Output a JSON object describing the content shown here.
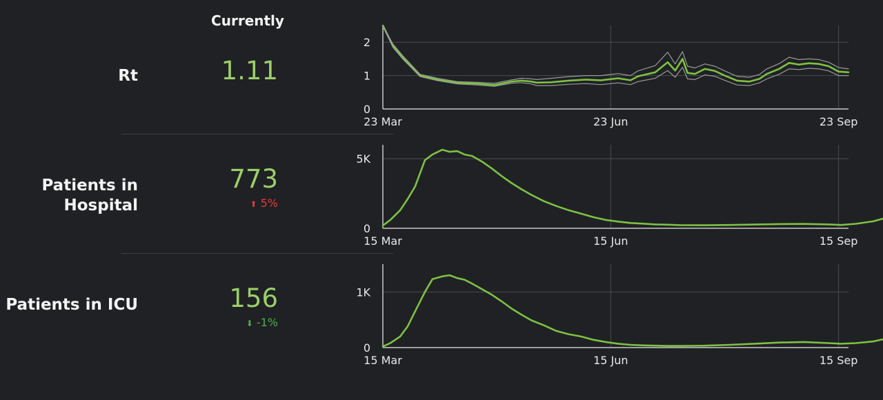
{
  "header": {
    "currently_label": "Currently"
  },
  "rows": [
    {
      "label": "Rt",
      "value": "1.11",
      "change": "",
      "change_direction": ""
    },
    {
      "label": "Patients in Hospital",
      "value": "773",
      "change": "5%",
      "change_direction": "up"
    },
    {
      "label": "Patients in ICU",
      "value": "156",
      "change": "-1%",
      "change_direction": "down"
    }
  ],
  "colors": {
    "line": "#7dc243",
    "band": "#9a9a9a",
    "up": "#e03c3c",
    "down": "#4caf50",
    "value": "#9bcf6a"
  },
  "chart_data": [
    {
      "type": "line",
      "title": "",
      "ylim": [
        0,
        2.5
      ],
      "yticks": [
        0,
        1,
        2
      ],
      "ytick_labels": [
        "0",
        "1",
        "2"
      ],
      "xticks": [
        0,
        92,
        184
      ],
      "xtick_labels": [
        "23 Mar",
        "23 Jun",
        "23 Sep"
      ],
      "grid": true,
      "band": true,
      "series": [
        {
          "x": [
            0,
            4,
            8,
            15,
            22,
            30,
            38,
            45,
            52,
            56,
            60,
            62,
            68,
            75,
            82,
            88,
            95,
            100,
            103,
            110,
            115,
            118,
            121,
            123,
            126,
            130,
            134,
            138,
            143,
            148,
            152,
            155,
            160,
            164,
            168,
            172,
            176,
            180,
            184,
            188
          ],
          "values": [
            2.5,
            1.9,
            1.55,
            1.0,
            0.88,
            0.78,
            0.76,
            0.72,
            0.82,
            0.85,
            0.82,
            0.79,
            0.8,
            0.85,
            0.88,
            0.86,
            0.92,
            0.86,
            0.98,
            1.1,
            1.4,
            1.15,
            1.5,
            1.08,
            1.05,
            1.2,
            1.14,
            1.0,
            0.85,
            0.82,
            0.9,
            1.05,
            1.2,
            1.38,
            1.33,
            1.37,
            1.35,
            1.28,
            1.12,
            1.1
          ]
        },
        {
          "x": [
            0,
            4,
            8,
            15,
            22,
            30,
            38,
            45,
            52,
            56,
            60,
            62,
            68,
            75,
            82,
            88,
            95,
            100,
            103,
            110,
            115,
            118,
            121,
            123,
            126,
            130,
            134,
            138,
            143,
            148,
            152,
            155,
            160,
            164,
            168,
            172,
            176,
            180,
            184,
            188
          ],
          "values": [
            2.5,
            1.95,
            1.6,
            1.04,
            0.92,
            0.82,
            0.8,
            0.77,
            0.87,
            0.92,
            0.9,
            0.88,
            0.92,
            0.97,
            1.0,
            1.0,
            1.06,
            1.0,
            1.14,
            1.3,
            1.7,
            1.35,
            1.72,
            1.28,
            1.23,
            1.35,
            1.28,
            1.14,
            0.98,
            0.95,
            1.03,
            1.2,
            1.36,
            1.55,
            1.48,
            1.5,
            1.48,
            1.4,
            1.24,
            1.2
          ]
        },
        {
          "x": [
            0,
            4,
            8,
            15,
            22,
            30,
            38,
            45,
            52,
            56,
            60,
            62,
            68,
            75,
            82,
            88,
            95,
            100,
            103,
            110,
            115,
            118,
            121,
            123,
            126,
            130,
            134,
            138,
            143,
            148,
            152,
            155,
            160,
            164,
            168,
            172,
            176,
            180,
            184,
            188
          ],
          "values": [
            2.5,
            1.85,
            1.5,
            0.97,
            0.85,
            0.75,
            0.72,
            0.68,
            0.77,
            0.79,
            0.75,
            0.7,
            0.7,
            0.74,
            0.76,
            0.73,
            0.78,
            0.73,
            0.82,
            0.92,
            1.15,
            0.95,
            1.25,
            0.9,
            0.88,
            1.02,
            0.98,
            0.86,
            0.72,
            0.7,
            0.78,
            0.9,
            1.04,
            1.2,
            1.18,
            1.22,
            1.2,
            1.14,
            1.0,
            1.0
          ]
        }
      ]
    },
    {
      "type": "line",
      "title": "",
      "ylim": [
        0,
        6000
      ],
      "yticks": [
        0,
        5000
      ],
      "ytick_labels": [
        "0",
        "5K"
      ],
      "xticks": [
        0,
        92,
        184
      ],
      "xtick_labels": [
        "15 Mar",
        "15 Jun",
        "15 Sep"
      ],
      "grid": true,
      "band": false,
      "series": [
        {
          "x": [
            0,
            3,
            7,
            10,
            13,
            17,
            20,
            24,
            27,
            30,
            33,
            36,
            40,
            44,
            48,
            52,
            56,
            60,
            65,
            70,
            75,
            80,
            85,
            90,
            95,
            100,
            105,
            110,
            115,
            120,
            130,
            140,
            150,
            160,
            170,
            180,
            185,
            191,
            198,
            203
          ],
          "values": [
            200,
            600,
            1300,
            2100,
            3000,
            4900,
            5300,
            5650,
            5500,
            5550,
            5300,
            5200,
            4800,
            4300,
            3750,
            3250,
            2800,
            2400,
            1950,
            1600,
            1300,
            1050,
            800,
            600,
            480,
            380,
            330,
            280,
            260,
            230,
            220,
            240,
            270,
            300,
            310,
            280,
            240,
            320,
            500,
            750
          ]
        }
      ]
    },
    {
      "type": "line",
      "title": "",
      "ylim": [
        0,
        1500
      ],
      "yticks": [
        0,
        1000
      ],
      "ytick_labels": [
        "0",
        "1K"
      ],
      "xticks": [
        0,
        92,
        184
      ],
      "xtick_labels": [
        "15 Mar",
        "15 Jun",
        "15 Sep"
      ],
      "grid": true,
      "band": false,
      "series": [
        {
          "x": [
            0,
            3,
            7,
            10,
            13,
            17,
            20,
            24,
            27,
            30,
            33,
            36,
            40,
            44,
            48,
            52,
            56,
            60,
            65,
            70,
            75,
            80,
            85,
            90,
            95,
            100,
            105,
            110,
            115,
            120,
            130,
            140,
            150,
            160,
            170,
            180,
            185,
            191,
            198,
            203
          ],
          "values": [
            20,
            80,
            200,
            380,
            650,
            1000,
            1230,
            1280,
            1300,
            1250,
            1220,
            1150,
            1050,
            950,
            830,
            700,
            590,
            490,
            400,
            300,
            240,
            200,
            140,
            100,
            70,
            50,
            40,
            35,
            30,
            30,
            35,
            50,
            70,
            90,
            100,
            80,
            70,
            80,
            110,
            160
          ]
        }
      ]
    }
  ]
}
